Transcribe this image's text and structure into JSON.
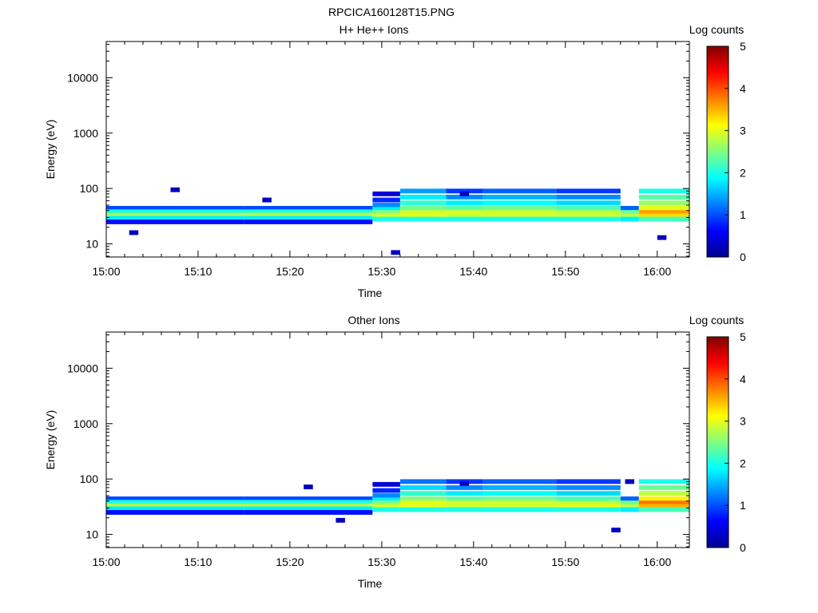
{
  "figure_title": "RPCICA160128T15.PNG",
  "colors": {
    "frame": "#000000",
    "background": "#ffffff",
    "colormap": [
      "#00008f",
      "#0000ff",
      "#0080ff",
      "#00ffff",
      "#80ff80",
      "#ffff00",
      "#ff8000",
      "#ff0000",
      "#800000"
    ]
  },
  "chart_data": [
    {
      "type": "heatmap",
      "title": "H+ He++ Ions",
      "xlabel": "Time",
      "ylabel": "Energy (eV)",
      "x_ticks": [
        "15:00",
        "15:10",
        "15:20",
        "15:30",
        "15:40",
        "15:50",
        "16:00"
      ],
      "y_scale": "log",
      "y_ticks": [
        "10",
        "100",
        "1000",
        "10000"
      ],
      "y_tick_values": [
        10,
        100,
        1000,
        10000
      ],
      "x_range_minutes": [
        0,
        63.5
      ],
      "y_range": [
        5.8,
        45000
      ],
      "colorbar": {
        "label": "Log counts",
        "ticks": [
          "0",
          "1",
          "2",
          "3",
          "4",
          "5"
        ],
        "range": [
          0,
          5
        ]
      },
      "cells": [
        [
          0,
          15,
          44,
          1.0
        ],
        [
          0,
          15,
          38,
          2.0
        ],
        [
          0,
          15,
          33,
          2.7
        ],
        [
          0,
          15,
          29,
          1.8
        ],
        [
          0,
          15,
          25,
          0.7
        ],
        [
          15,
          29,
          44,
          1.0
        ],
        [
          15,
          29,
          38,
          2.0
        ],
        [
          15,
          29,
          33,
          2.8
        ],
        [
          15,
          29,
          29,
          1.8
        ],
        [
          15,
          29,
          25,
          0.7
        ],
        [
          29,
          32,
          80,
          0.4
        ],
        [
          29,
          32,
          62,
          0.8
        ],
        [
          29,
          32,
          50,
          1.3
        ],
        [
          29,
          32,
          42,
          1.8
        ],
        [
          29,
          32,
          37,
          2.5
        ],
        [
          29,
          32,
          32,
          2.9
        ],
        [
          29,
          32,
          28,
          2.0
        ],
        [
          32,
          37,
          90,
          1.4
        ],
        [
          32,
          37,
          70,
          1.8
        ],
        [
          32,
          37,
          55,
          2.1
        ],
        [
          32,
          37,
          44,
          2.4
        ],
        [
          32,
          37,
          37,
          2.9
        ],
        [
          32,
          37,
          32,
          3.0
        ],
        [
          32,
          37,
          28,
          2.0
        ],
        [
          37,
          41,
          90,
          0.9
        ],
        [
          37,
          41,
          70,
          1.3
        ],
        [
          37,
          41,
          55,
          1.8
        ],
        [
          37,
          41,
          44,
          2.3
        ],
        [
          37,
          41,
          37,
          2.9
        ],
        [
          37,
          41,
          32,
          2.9
        ],
        [
          37,
          41,
          28,
          2.0
        ],
        [
          41,
          49,
          90,
          1.1
        ],
        [
          41,
          49,
          70,
          1.5
        ],
        [
          41,
          49,
          55,
          1.9
        ],
        [
          41,
          49,
          44,
          2.4
        ],
        [
          41,
          49,
          37,
          2.9
        ],
        [
          41,
          49,
          32,
          2.9
        ],
        [
          41,
          49,
          28,
          2.0
        ],
        [
          49,
          56,
          90,
          0.9
        ],
        [
          49,
          56,
          70,
          1.3
        ],
        [
          49,
          56,
          55,
          1.7
        ],
        [
          49,
          56,
          44,
          2.2
        ],
        [
          49,
          56,
          37,
          2.8
        ],
        [
          49,
          56,
          32,
          2.9
        ],
        [
          49,
          56,
          28,
          2.0
        ],
        [
          56,
          58,
          44,
          1.1
        ],
        [
          56,
          58,
          37,
          2.4
        ],
        [
          56,
          58,
          32,
          2.8
        ],
        [
          56,
          58,
          28,
          1.8
        ],
        [
          58,
          63.5,
          90,
          2.0
        ],
        [
          58,
          63.5,
          70,
          2.3
        ],
        [
          58,
          63.5,
          55,
          2.6
        ],
        [
          58,
          63.5,
          44,
          3.0
        ],
        [
          58,
          63.5,
          37,
          3.6
        ],
        [
          58,
          63.5,
          32,
          3.3
        ],
        [
          58,
          63.5,
          28,
          2.2
        ],
        [
          7,
          8,
          95,
          0.3
        ],
        [
          17,
          18,
          62,
          0.3
        ],
        [
          2.5,
          3.5,
          16,
          0.3
        ],
        [
          31,
          32,
          7,
          0.3
        ],
        [
          60,
          61,
          13,
          0.3
        ],
        [
          38.5,
          39.5,
          80,
          0.3
        ]
      ]
    },
    {
      "type": "heatmap",
      "title": "Other Ions",
      "xlabel": "Time",
      "ylabel": "Energy (eV)",
      "x_ticks": [
        "15:00",
        "15:10",
        "15:20",
        "15:30",
        "15:40",
        "15:50",
        "16:00"
      ],
      "y_scale": "log",
      "y_ticks": [
        "10",
        "100",
        "1000",
        "10000"
      ],
      "y_tick_values": [
        10,
        100,
        1000,
        10000
      ],
      "x_range_minutes": [
        0,
        63.5
      ],
      "y_range": [
        5.8,
        45000
      ],
      "colorbar": {
        "label": "Log counts",
        "ticks": [
          "0",
          "1",
          "2",
          "3",
          "4",
          "5"
        ],
        "range": [
          0,
          5
        ]
      },
      "cells": [
        [
          0,
          15,
          44,
          1.0
        ],
        [
          0,
          15,
          38,
          2.0
        ],
        [
          0,
          15,
          33,
          2.8
        ],
        [
          0,
          15,
          29,
          1.8
        ],
        [
          0,
          15,
          25,
          0.7
        ],
        [
          15,
          29,
          44,
          1.0
        ],
        [
          15,
          29,
          38,
          2.0
        ],
        [
          15,
          29,
          33,
          2.8
        ],
        [
          15,
          29,
          29,
          1.8
        ],
        [
          15,
          29,
          25,
          0.7
        ],
        [
          29,
          32,
          80,
          0.4
        ],
        [
          29,
          32,
          62,
          0.8
        ],
        [
          29,
          32,
          50,
          1.3
        ],
        [
          29,
          32,
          42,
          1.8
        ],
        [
          29,
          32,
          37,
          2.5
        ],
        [
          29,
          32,
          32,
          2.9
        ],
        [
          29,
          32,
          28,
          2.0
        ],
        [
          32,
          37,
          90,
          1.2
        ],
        [
          32,
          37,
          70,
          1.7
        ],
        [
          32,
          37,
          55,
          2.1
        ],
        [
          32,
          37,
          44,
          2.5
        ],
        [
          32,
          37,
          37,
          3.0
        ],
        [
          32,
          37,
          32,
          3.0
        ],
        [
          32,
          37,
          28,
          2.0
        ],
        [
          37,
          41,
          90,
          0.9
        ],
        [
          37,
          41,
          70,
          1.3
        ],
        [
          37,
          41,
          55,
          1.8
        ],
        [
          37,
          41,
          44,
          2.3
        ],
        [
          37,
          41,
          37,
          2.9
        ],
        [
          37,
          41,
          32,
          2.9
        ],
        [
          37,
          41,
          28,
          2.0
        ],
        [
          41,
          49,
          90,
          1.1
        ],
        [
          41,
          49,
          70,
          1.5
        ],
        [
          41,
          49,
          55,
          1.9
        ],
        [
          41,
          49,
          44,
          2.4
        ],
        [
          41,
          49,
          37,
          2.9
        ],
        [
          41,
          49,
          32,
          2.9
        ],
        [
          41,
          49,
          28,
          2.0
        ],
        [
          49,
          56,
          90,
          0.9
        ],
        [
          49,
          56,
          70,
          1.3
        ],
        [
          49,
          56,
          55,
          1.7
        ],
        [
          49,
          56,
          44,
          2.2
        ],
        [
          49,
          56,
          37,
          2.8
        ],
        [
          49,
          56,
          32,
          3.0
        ],
        [
          49,
          56,
          28,
          2.0
        ],
        [
          56,
          58,
          44,
          1.1
        ],
        [
          56,
          58,
          37,
          2.4
        ],
        [
          56,
          58,
          32,
          2.8
        ],
        [
          56,
          58,
          28,
          1.8
        ],
        [
          58,
          63.5,
          90,
          2.0
        ],
        [
          58,
          63.5,
          70,
          2.4
        ],
        [
          58,
          63.5,
          55,
          2.8
        ],
        [
          58,
          63.5,
          44,
          3.2
        ],
        [
          58,
          63.5,
          37,
          3.8
        ],
        [
          58,
          63.5,
          32,
          3.5
        ],
        [
          58,
          63.5,
          28,
          2.2
        ],
        [
          21.5,
          22.5,
          72,
          0.3
        ],
        [
          25,
          26,
          18,
          0.3
        ],
        [
          38.5,
          39.5,
          83,
          0.3
        ],
        [
          55,
          56,
          12,
          0.3
        ],
        [
          56.5,
          57.5,
          90,
          0.3
        ]
      ]
    }
  ]
}
